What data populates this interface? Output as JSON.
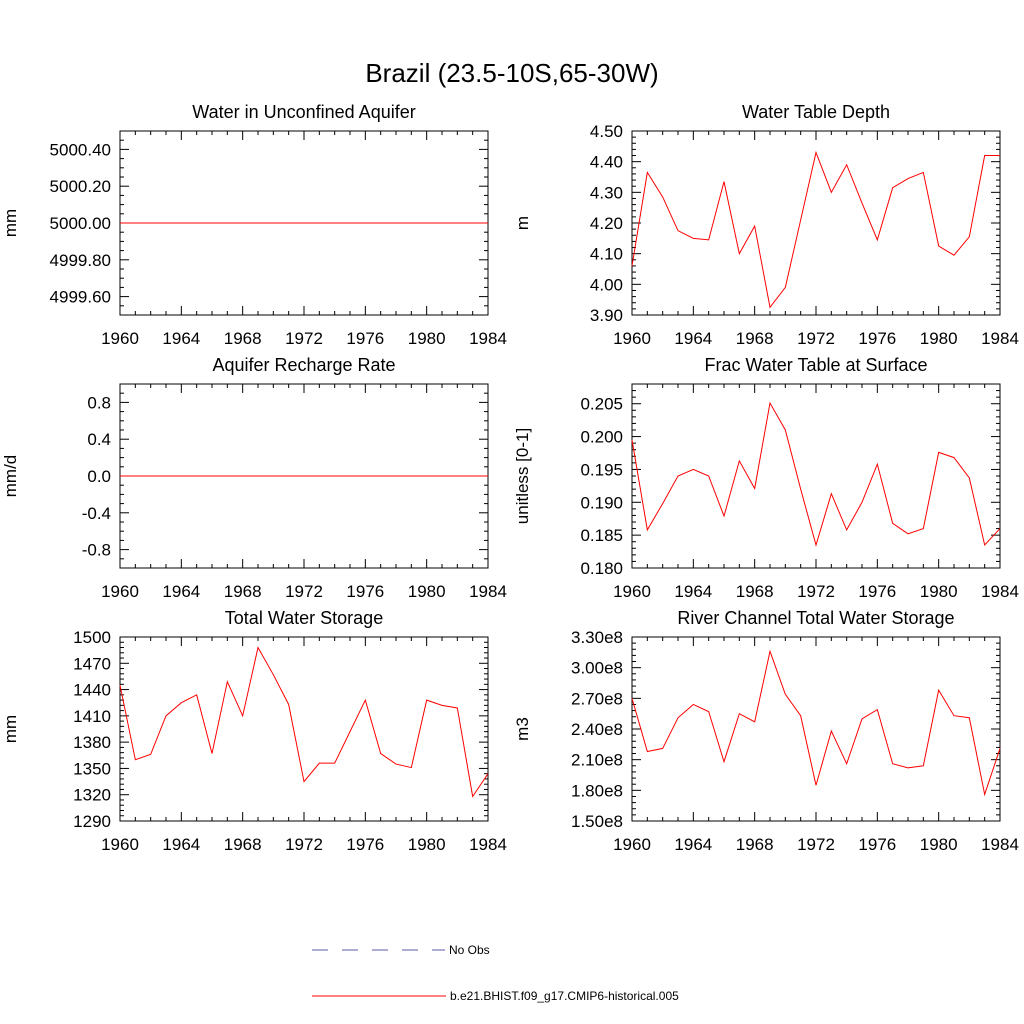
{
  "page_title": "Brazil (23.5-10S,65-30W)",
  "legend": {
    "items": [
      {
        "label": "No Obs",
        "color": "#5a5aa8",
        "style": "dashed"
      },
      {
        "label": "b.e21.BHIST.f09_g17.CMIP6-historical.005",
        "color": "#ff0000",
        "style": "solid"
      }
    ]
  },
  "chart_data": [
    {
      "type": "line",
      "title": "Water in Unconfined Aquifer",
      "ylabel": "mm",
      "xlim": [
        1960,
        1984
      ],
      "ylim": [
        4999.5,
        5000.5
      ],
      "xticks": [
        1960,
        1964,
        1968,
        1972,
        1976,
        1980,
        1984
      ],
      "yticks": [
        4999.6,
        4999.8,
        5000.0,
        5000.2,
        5000.4
      ],
      "ytick_labels": [
        "4999.60",
        "4999.80",
        "5000.00",
        "5000.20",
        "5000.40"
      ],
      "yminor": [
        4999.5,
        4999.55,
        4999.65,
        4999.7,
        4999.75,
        4999.85,
        4999.9,
        4999.95,
        5000.05,
        5000.1,
        5000.15,
        5000.25,
        5000.3,
        5000.35,
        5000.45,
        5000.5
      ],
      "series": [
        {
          "color": "#ff0000",
          "x": [
            1960,
            1961,
            1962,
            1963,
            1964,
            1965,
            1966,
            1967,
            1968,
            1969,
            1970,
            1971,
            1972,
            1973,
            1974,
            1975,
            1976,
            1977,
            1978,
            1979,
            1980,
            1981,
            1982,
            1983,
            1984
          ],
          "values": [
            5000,
            5000,
            5000,
            5000,
            5000,
            5000,
            5000,
            5000,
            5000,
            5000,
            5000,
            5000,
            5000,
            5000,
            5000,
            5000,
            5000,
            5000,
            5000,
            5000,
            5000,
            5000,
            5000,
            5000,
            5000
          ]
        }
      ]
    },
    {
      "type": "line",
      "title": "Water Table Depth",
      "ylabel": "m",
      "xlim": [
        1960,
        1984
      ],
      "ylim": [
        3.9,
        4.5
      ],
      "xticks": [
        1960,
        1964,
        1968,
        1972,
        1976,
        1980,
        1984
      ],
      "yticks": [
        3.9,
        4.0,
        4.1,
        4.2,
        4.3,
        4.4,
        4.5
      ],
      "ytick_labels": [
        "3.90",
        "4.00",
        "4.10",
        "4.20",
        "4.30",
        "4.40",
        "4.50"
      ],
      "yminor": [
        3.92,
        3.94,
        3.96,
        3.98,
        4.02,
        4.04,
        4.06,
        4.08,
        4.12,
        4.14,
        4.16,
        4.18,
        4.22,
        4.24,
        4.26,
        4.28,
        4.32,
        4.34,
        4.36,
        4.38,
        4.42,
        4.44,
        4.46,
        4.48
      ],
      "series": [
        {
          "color": "#ff0000",
          "x": [
            1960,
            1961,
            1962,
            1963,
            1964,
            1965,
            1966,
            1967,
            1968,
            1969,
            1970,
            1971,
            1972,
            1973,
            1974,
            1975,
            1976,
            1977,
            1978,
            1979,
            1980,
            1981,
            1982,
            1983,
            1984
          ],
          "values": [
            4.06,
            4.365,
            4.285,
            4.175,
            4.15,
            4.145,
            4.335,
            4.1,
            4.19,
            3.925,
            3.99,
            4.21,
            4.43,
            4.3,
            4.39,
            4.265,
            4.145,
            4.315,
            4.345,
            4.365,
            4.125,
            4.095,
            4.155,
            4.42,
            4.42
          ]
        }
      ]
    },
    {
      "type": "line",
      "title": "Aquifer Recharge Rate",
      "ylabel": "mm/d",
      "xlim": [
        1960,
        1984
      ],
      "ylim": [
        -1.0,
        1.0
      ],
      "xticks": [
        1960,
        1964,
        1968,
        1972,
        1976,
        1980,
        1984
      ],
      "yticks": [
        -0.8,
        -0.4,
        0.0,
        0.4,
        0.8
      ],
      "ytick_labels": [
        "-0.8",
        "-0.4",
        "0.0",
        "0.4",
        "0.8"
      ],
      "yminor": [
        -1.0,
        -0.9,
        -0.7,
        -0.6,
        -0.5,
        -0.3,
        -0.2,
        -0.1,
        0.1,
        0.2,
        0.3,
        0.5,
        0.6,
        0.7,
        0.9,
        1.0
      ],
      "series": [
        {
          "color": "#ff0000",
          "x": [
            1960,
            1961,
            1962,
            1963,
            1964,
            1965,
            1966,
            1967,
            1968,
            1969,
            1970,
            1971,
            1972,
            1973,
            1974,
            1975,
            1976,
            1977,
            1978,
            1979,
            1980,
            1981,
            1982,
            1983,
            1984
          ],
          "values": [
            0,
            0,
            0,
            0,
            0,
            0,
            0,
            0,
            0,
            0,
            0,
            0,
            0,
            0,
            0,
            0,
            0,
            0,
            0,
            0,
            0,
            0,
            0,
            0,
            0
          ]
        }
      ]
    },
    {
      "type": "line",
      "title": "Frac Water Table at Surface",
      "ylabel": "unitless [0-1]",
      "xlim": [
        1960,
        1984
      ],
      "ylim": [
        0.18,
        0.208
      ],
      "xticks": [
        1960,
        1964,
        1968,
        1972,
        1976,
        1980,
        1984
      ],
      "yticks": [
        0.18,
        0.185,
        0.19,
        0.195,
        0.2,
        0.205
      ],
      "ytick_labels": [
        "0.180",
        "0.185",
        "0.190",
        "0.195",
        "0.200",
        "0.205"
      ],
      "yminor": [
        0.181,
        0.182,
        0.183,
        0.184,
        0.186,
        0.187,
        0.188,
        0.189,
        0.191,
        0.192,
        0.193,
        0.194,
        0.196,
        0.197,
        0.198,
        0.199,
        0.201,
        0.202,
        0.203,
        0.204,
        0.206,
        0.207,
        0.208
      ],
      "series": [
        {
          "color": "#ff0000",
          "x": [
            1960,
            1961,
            1962,
            1963,
            1964,
            1965,
            1966,
            1967,
            1968,
            1969,
            1970,
            1971,
            1972,
            1973,
            1974,
            1975,
            1976,
            1977,
            1978,
            1979,
            1980,
            1981,
            1982,
            1983,
            1984
          ],
          "values": [
            0.1995,
            0.1858,
            0.1898,
            0.194,
            0.195,
            0.194,
            0.1879,
            0.1963,
            0.1921,
            0.2051,
            0.201,
            0.192,
            0.1835,
            0.1913,
            0.1858,
            0.19,
            0.1958,
            0.1868,
            0.1852,
            0.186,
            0.1976,
            0.1968,
            0.1937,
            0.1835,
            0.186
          ]
        }
      ]
    },
    {
      "type": "line",
      "title": "Total Water Storage",
      "ylabel": "mm",
      "xlim": [
        1960,
        1984
      ],
      "ylim": [
        1290,
        1500
      ],
      "xticks": [
        1960,
        1964,
        1968,
        1972,
        1976,
        1980,
        1984
      ],
      "yticks": [
        1290,
        1320,
        1350,
        1380,
        1410,
        1440,
        1470,
        1500
      ],
      "ytick_labels": [
        "1290",
        "1320",
        "1350",
        "1380",
        "1410",
        "1440",
        "1470",
        "1500"
      ],
      "yminor": [
        1296,
        1302,
        1308,
        1314,
        1326,
        1332,
        1338,
        1344,
        1356,
        1362,
        1368,
        1374,
        1386,
        1392,
        1398,
        1404,
        1416,
        1422,
        1428,
        1434,
        1446,
        1452,
        1458,
        1464,
        1476,
        1482,
        1488,
        1494
      ],
      "series": [
        {
          "color": "#ff0000",
          "x": [
            1960,
            1961,
            1962,
            1963,
            1964,
            1965,
            1966,
            1967,
            1968,
            1969,
            1970,
            1971,
            1972,
            1973,
            1974,
            1975,
            1976,
            1977,
            1978,
            1979,
            1980,
            1981,
            1982,
            1983,
            1984
          ],
          "values": [
            1445,
            1360,
            1366,
            1410,
            1425,
            1434,
            1367,
            1449,
            1410,
            1488,
            1457,
            1423,
            1335,
            1356,
            1356,
            1392,
            1428,
            1367,
            1355,
            1351,
            1428,
            1422,
            1419,
            1318,
            1344
          ]
        }
      ]
    },
    {
      "type": "line",
      "title": "River Channel Total Water Storage",
      "ylabel": "m3",
      "xlim": [
        1960,
        1984
      ],
      "ylim": [
        150000000,
        330000000
      ],
      "xticks": [
        1960,
        1964,
        1968,
        1972,
        1976,
        1980,
        1984
      ],
      "yticks": [
        150000000,
        180000000,
        210000000,
        240000000,
        270000000,
        300000000,
        330000000
      ],
      "ytick_labels": [
        "1.50e8",
        "1.80e8",
        "2.10e8",
        "2.40e8",
        "2.70e8",
        "3.00e8",
        "3.30e8"
      ],
      "yminor": [
        156000000,
        162000000,
        168000000,
        174000000,
        186000000,
        192000000,
        198000000,
        204000000,
        216000000,
        222000000,
        228000000,
        234000000,
        246000000,
        252000000,
        258000000,
        264000000,
        276000000,
        282000000,
        288000000,
        294000000,
        306000000,
        312000000,
        318000000,
        324000000
      ],
      "series": [
        {
          "color": "#ff0000",
          "x": [
            1960,
            1961,
            1962,
            1963,
            1964,
            1965,
            1966,
            1967,
            1968,
            1969,
            1970,
            1971,
            1972,
            1973,
            1974,
            1975,
            1976,
            1977,
            1978,
            1979,
            1980,
            1981,
            1982,
            1983,
            1984
          ],
          "values": [
            270000000,
            218000000,
            221000000,
            251000000,
            264000000,
            257000000,
            208000000,
            255000000,
            247000000,
            316000000,
            274000000,
            253000000,
            185000000,
            238000000,
            206000000,
            250000000,
            259000000,
            206000000,
            202000000,
            204000000,
            278000000,
            253000000,
            251000000,
            176000000,
            221000000
          ]
        }
      ]
    }
  ]
}
